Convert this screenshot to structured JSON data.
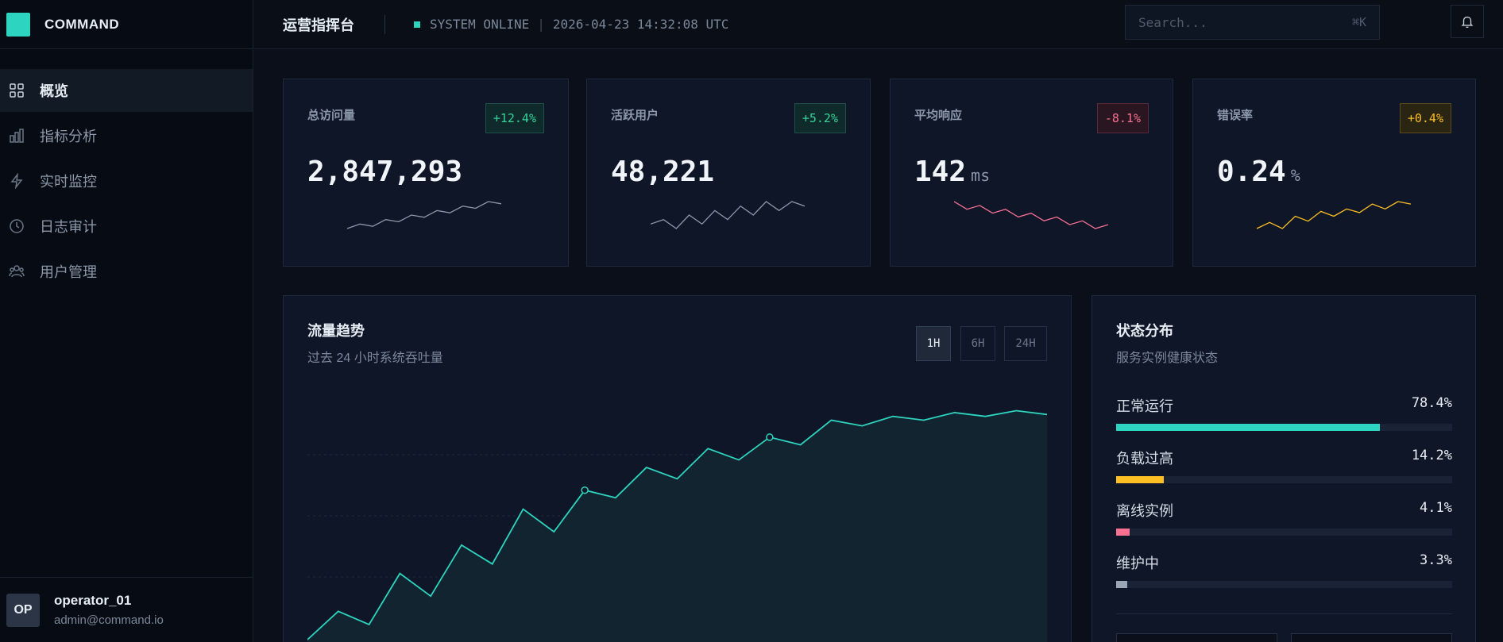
{
  "brand": {
    "name": "COMMAND"
  },
  "sidebar": {
    "items": [
      {
        "label": "概览",
        "icon": "grid-icon",
        "active": true
      },
      {
        "label": "指标分析",
        "icon": "bar-chart-icon",
        "active": false
      },
      {
        "label": "实时监控",
        "icon": "lightning-icon",
        "active": false
      },
      {
        "label": "日志审计",
        "icon": "clock-icon",
        "active": false
      },
      {
        "label": "用户管理",
        "icon": "users-icon",
        "active": false
      }
    ],
    "user": {
      "initials": "OP",
      "name": "operator_01",
      "email": "admin@command.io"
    }
  },
  "header": {
    "title": "运营指挥台",
    "status_text": "SYSTEM ONLINE",
    "timestamp": "2026-04-23 14:32:08 UTC",
    "search_placeholder": "Search...",
    "search_shortcut": "⌘K"
  },
  "kpis": [
    {
      "label": "总访问量",
      "value": "2,847,293",
      "unit": "",
      "badge": "+12.4%",
      "badge_tone": "green",
      "spark_color": "#8b98a9",
      "spark": [
        2,
        4,
        3,
        6,
        5,
        8,
        7,
        10,
        9,
        12,
        11,
        14,
        13
      ]
    },
    {
      "label": "活跃用户",
      "value": "48,221",
      "unit": "",
      "badge": "+5.2%",
      "badge_tone": "green",
      "spark_color": "#8b98a9",
      "spark": [
        4,
        5,
        3,
        6,
        4,
        7,
        5,
        8,
        6,
        9,
        7,
        9,
        8
      ]
    },
    {
      "label": "平均响应",
      "value": "142",
      "unit": "ms",
      "badge": "-8.1%",
      "badge_tone": "red",
      "spark_color": "#f87193",
      "spark": [
        14,
        12,
        13,
        11,
        12,
        10,
        11,
        9,
        10,
        8,
        9,
        7,
        8
      ]
    },
    {
      "label": "错误率",
      "value": "0.24",
      "unit": "%",
      "badge": "+0.4%",
      "badge_tone": "amber",
      "spark_color": "#fbbf24",
      "spark": [
        3,
        3.5,
        3,
        4,
        3.6,
        4.4,
        4,
        4.6,
        4.3,
        5,
        4.6,
        5.2,
        5
      ]
    }
  ],
  "traffic": {
    "title": "流量趋势",
    "subtitle": "过去 24 小时系统吞吐量",
    "ranges": [
      "1H",
      "6H",
      "24H"
    ],
    "active_range": "1H",
    "line_color": "#2dd4bf",
    "points": [
      5,
      20,
      13,
      40,
      28,
      55,
      45,
      74,
      62,
      84,
      80,
      96,
      90,
      106,
      100,
      112,
      108,
      121,
      118,
      123,
      121,
      125,
      123,
      126,
      124
    ],
    "markers": [
      9,
      15
    ]
  },
  "status": {
    "title": "状态分布",
    "subtitle": "服务实例健康状态",
    "rows": [
      {
        "label": "正常运行",
        "pct": "78.4%",
        "value": 78.4,
        "color": "#2dd4bf"
      },
      {
        "label": "负载过高",
        "pct": "14.2%",
        "value": 14.2,
        "color": "#fbbf24"
      },
      {
        "label": "离线实例",
        "pct": "4.1%",
        "value": 4.1,
        "color": "#f87193"
      },
      {
        "label": "维护中",
        "pct": "3.3%",
        "value": 3.3,
        "color": "#9aa6b6"
      }
    ]
  }
}
